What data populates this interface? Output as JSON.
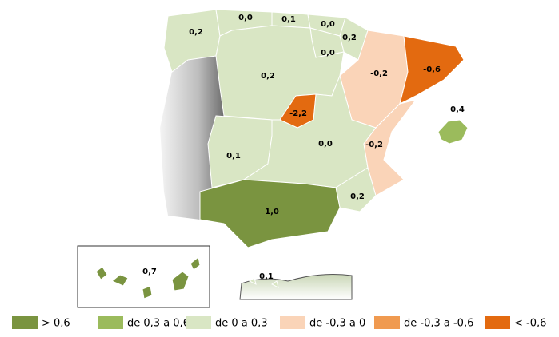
{
  "regions": [
    {
      "value": 0.2,
      "label": "0,2",
      "color": "#d9e6c4"
    },
    {
      "value": 0.0,
      "label": "0,0",
      "color": "#d9e6c4"
    },
    {
      "value": 0.1,
      "label": "0,1",
      "color": "#d9e6c4"
    },
    {
      "value": 0.0,
      "label": "0,0",
      "color": "#d9e6c4"
    },
    {
      "value": 0.2,
      "label": "0,2",
      "color": "#d9e6c4"
    },
    {
      "value": 0.0,
      "label": "0,0",
      "color": "#d9e6c4"
    },
    {
      "value": 0.2,
      "label": "0,2",
      "color": "#d9e6c4"
    },
    {
      "value": -0.2,
      "label": "-0,2",
      "color": "#fad4b8"
    },
    {
      "value": -0.6,
      "label": "-0,6",
      "color": "#e36a10"
    },
    {
      "value": 0.1,
      "label": "0,1",
      "color": "#d9e6c4"
    },
    {
      "value": 0.0,
      "label": "0,0",
      "color": "#d9e6c4"
    },
    {
      "value": -2.2,
      "label": "-2,2",
      "color": "#e36a10"
    },
    {
      "value": -0.2,
      "label": "-0,2",
      "color": "#fad4b8"
    },
    {
      "value": 0.2,
      "label": "0,2",
      "color": "#d9e6c4"
    },
    {
      "value": 1.0,
      "label": "1,0",
      "color": "#7a9440"
    },
    {
      "value": 0.4,
      "label": "0,4",
      "color": "#9bbb5c"
    },
    {
      "value": 0.7,
      "label": "0,7",
      "color": "#7a9440"
    },
    {
      "value": 0.1,
      "label": "0,1",
      "color": "#d9e6c4"
    }
  ],
  "legend": [
    {
      "label": "> 0,6",
      "color": "#7a9440"
    },
    {
      "label": "de 0,3 a 0,6",
      "color": "#9bbb5c"
    },
    {
      "label": "de 0 a 0,3",
      "color": "#d9e6c4"
    },
    {
      "label": "de -0,3 a 0",
      "color": "#fad4b8"
    },
    {
      "label": "de -0,3 a -0,6",
      "color": "#f09a50"
    },
    {
      "label": "< -0,6",
      "color": "#e36a10"
    }
  ]
}
